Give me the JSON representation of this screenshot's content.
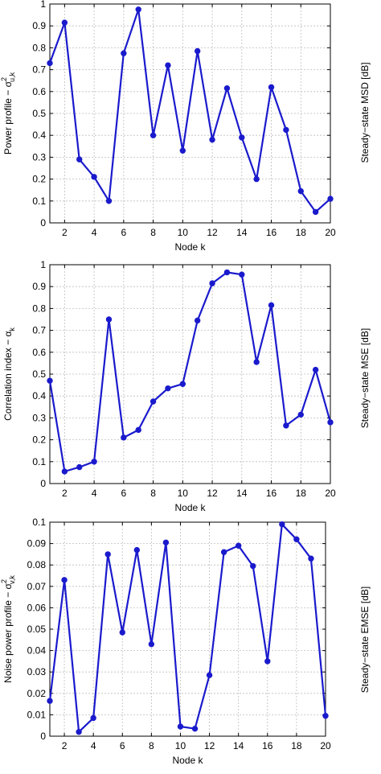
{
  "colors": {
    "series": "#1a1acd",
    "grid": "#bdbdbd",
    "frame": "#000000"
  },
  "chart_data": [
    {
      "type": "line",
      "xlabel": "Node k",
      "ylabel": "Power profile − σ",
      "ylabel_sup": "2",
      "ylabel_sub": "u,k",
      "xlim": [
        1,
        20
      ],
      "ylim": [
        0,
        1
      ],
      "xticks": [
        2,
        4,
        6,
        8,
        10,
        12,
        14,
        16,
        18,
        20
      ],
      "yticks": [
        0,
        0.1,
        0.2,
        0.3,
        0.4,
        0.5,
        0.6,
        0.7,
        0.8,
        0.9,
        1
      ],
      "ytick_labels": [
        "0",
        "0.1",
        "0.2",
        "0.3",
        "0.4",
        "0.5",
        "0.6",
        "0.7",
        "0.8",
        "0.9",
        "1"
      ],
      "grid": true,
      "x": [
        1,
        2,
        3,
        4,
        5,
        6,
        7,
        8,
        9,
        10,
        11,
        12,
        13,
        14,
        15,
        16,
        17,
        18,
        19,
        20
      ],
      "values": [
        0.73,
        0.915,
        0.29,
        0.21,
        0.1,
        0.775,
        0.975,
        0.4,
        0.72,
        0.33,
        0.785,
        0.38,
        0.615,
        0.39,
        0.2,
        0.62,
        0.425,
        0.145,
        0.05,
        0.11
      ]
    },
    {
      "type": "line",
      "xlabel": "Node k",
      "ylabel": "Correlation index − α",
      "ylabel_sup": "",
      "ylabel_sub": "k",
      "xlim": [
        1,
        20
      ],
      "ylim": [
        0,
        1
      ],
      "xticks": [
        2,
        4,
        6,
        8,
        10,
        12,
        14,
        16,
        18,
        20
      ],
      "yticks": [
        0,
        0.1,
        0.2,
        0.3,
        0.4,
        0.5,
        0.6,
        0.7,
        0.8,
        0.9,
        1
      ],
      "ytick_labels": [
        "0",
        "0.1",
        "0.2",
        "0.3",
        "0.4",
        "0.5",
        "0.6",
        "0.7",
        "0.8",
        "0.9",
        "1"
      ],
      "grid": true,
      "x": [
        1,
        2,
        3,
        4,
        5,
        6,
        7,
        8,
        9,
        10,
        11,
        12,
        13,
        14,
        15,
        16,
        17,
        18,
        19,
        20
      ],
      "values": [
        0.47,
        0.055,
        0.075,
        0.1,
        0.75,
        0.21,
        0.245,
        0.375,
        0.435,
        0.455,
        0.745,
        0.915,
        0.965,
        0.955,
        0.555,
        0.815,
        0.265,
        0.315,
        0.52,
        0.28
      ]
    },
    {
      "type": "line",
      "xlabel": "Node k",
      "ylabel": "Noise power profile − σ",
      "ylabel_sup": "2",
      "ylabel_sub": "v,k",
      "xlim": [
        1,
        20
      ],
      "ylim": [
        0,
        0.1
      ],
      "xticks": [
        2,
        4,
        6,
        8,
        10,
        12,
        14,
        16,
        18,
        20
      ],
      "yticks": [
        0,
        0.01,
        0.02,
        0.03,
        0.04,
        0.05,
        0.06,
        0.07,
        0.08,
        0.09,
        0.1
      ],
      "ytick_labels": [
        "0",
        "0.01",
        "0.02",
        "0.03",
        "0.04",
        "0.05",
        "0.06",
        "0.07",
        "0.08",
        "0.09",
        "0.1"
      ],
      "grid": true,
      "x": [
        1,
        2,
        3,
        4,
        5,
        6,
        7,
        8,
        9,
        10,
        11,
        12,
        13,
        14,
        15,
        16,
        17,
        18,
        19,
        20
      ],
      "values": [
        0.0165,
        0.073,
        0.002,
        0.0085,
        0.085,
        0.0485,
        0.087,
        0.043,
        0.0905,
        0.0045,
        0.0035,
        0.0285,
        0.086,
        0.089,
        0.0795,
        0.035,
        0.099,
        0.092,
        0.083,
        0.0095
      ]
    }
  ],
  "side_labels": [
    "Steady−state MSD [dB]",
    "Steady−state MSE [dB]",
    "Steady−state EMSE [dB]"
  ]
}
